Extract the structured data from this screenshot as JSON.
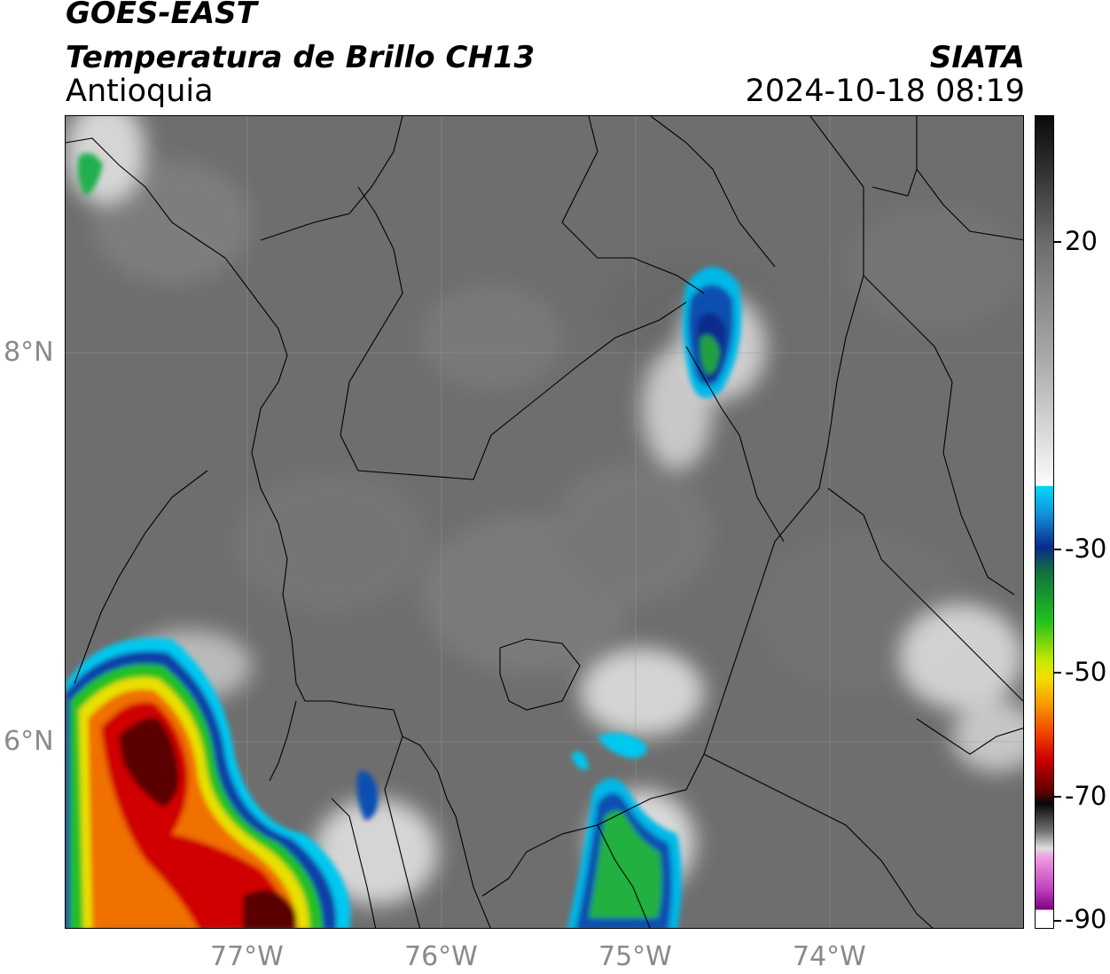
{
  "header": {
    "title_line1": "GOES-EAST",
    "title_line2": "Temperatura de Brillo CH13",
    "region": "Antioquia",
    "organization": "SIATA",
    "datetime": "2024-10-18 08:19"
  },
  "map": {
    "latitude_labels": [
      "8°N",
      "6°N"
    ],
    "longitude_labels": [
      "77°W",
      "76°W",
      "75°W",
      "74°W"
    ],
    "background_color": "#6e6e6e",
    "border_color": "#000000",
    "gridline_color": "#9a9a9a"
  },
  "colorbar": {
    "tick_labels": [
      "20",
      "-30",
      "-50",
      "-70",
      "-90"
    ],
    "colors": {
      "warm_top": "#0a0a0a",
      "warm_mid": "#8c8c8c",
      "warm_low": "#f4f4f4",
      "cyan": "#00c8f0",
      "blue": "#0a2a8c",
      "green": "#20c020",
      "yellow": "#f0e000",
      "orange": "#f07000",
      "red": "#d00000",
      "dark_red": "#3a0000",
      "pink": "#e060c0",
      "purple": "#800080"
    }
  }
}
